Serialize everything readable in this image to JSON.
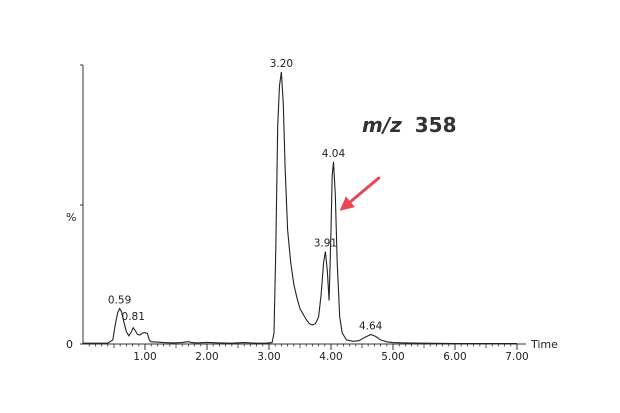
{
  "chart_data": {
    "type": "line",
    "title_italic": "m/z",
    "title_value": "358",
    "xlabel": "Time",
    "ylabel": "%",
    "xlim": [
      0,
      7.0
    ],
    "ylim": [
      0,
      100
    ],
    "y_axis_ticks": [
      "0"
    ],
    "x_ticks": [
      {
        "v": 1.0,
        "label": "1.00"
      },
      {
        "v": 2.0,
        "label": "2.00"
      },
      {
        "v": 3.0,
        "label": "3.00"
      },
      {
        "v": 4.0,
        "label": "4.00"
      },
      {
        "v": 5.0,
        "label": "5.00"
      },
      {
        "v": 6.0,
        "label": "6.00"
      },
      {
        "v": 7.0,
        "label": "7.00"
      }
    ],
    "peak_labels": [
      {
        "x": 0.59,
        "y": 13.0,
        "label": "0.59"
      },
      {
        "x": 0.81,
        "y": 7.0,
        "label": "0.81"
      },
      {
        "x": 3.2,
        "y": 100.0,
        "label": "3.20"
      },
      {
        "x": 3.91,
        "y": 34.0,
        "label": "3.91"
      },
      {
        "x": 4.04,
        "y": 67.0,
        "label": "4.04"
      },
      {
        "x": 4.64,
        "y": 3.5,
        "label": "4.64"
      }
    ],
    "arrow": {
      "from": [
        4.77,
        61
      ],
      "to": [
        4.14,
        49
      ],
      "color": "#e84855"
    },
    "line_color": "#222222",
    "series": [
      {
        "points": [
          [
            0.0,
            0.3
          ],
          [
            0.4,
            0.3
          ],
          [
            0.48,
            1.5
          ],
          [
            0.52,
            7
          ],
          [
            0.56,
            11.5
          ],
          [
            0.59,
            13.0
          ],
          [
            0.62,
            12
          ],
          [
            0.66,
            8
          ],
          [
            0.7,
            4.5
          ],
          [
            0.74,
            3.0
          ],
          [
            0.78,
            4.5
          ],
          [
            0.81,
            6.0
          ],
          [
            0.84,
            5.0
          ],
          [
            0.88,
            3.5
          ],
          [
            0.92,
            3.3
          ],
          [
            0.96,
            4.0
          ],
          [
            1.0,
            4.2
          ],
          [
            1.04,
            3.8
          ],
          [
            1.07,
            1.5
          ],
          [
            1.1,
            0.8
          ],
          [
            1.2,
            0.7
          ],
          [
            1.3,
            0.5
          ],
          [
            1.45,
            0.4
          ],
          [
            1.6,
            0.5
          ],
          [
            1.7,
            0.9
          ],
          [
            1.75,
            0.5
          ],
          [
            1.85,
            0.4
          ],
          [
            2.0,
            0.6
          ],
          [
            2.2,
            0.4
          ],
          [
            2.4,
            0.3
          ],
          [
            2.6,
            0.5
          ],
          [
            2.8,
            0.3
          ],
          [
            2.95,
            0.3
          ],
          [
            3.05,
            0.5
          ],
          [
            3.08,
            4
          ],
          [
            3.11,
            35
          ],
          [
            3.14,
            80
          ],
          [
            3.17,
            95
          ],
          [
            3.2,
            100.0
          ],
          [
            3.23,
            88
          ],
          [
            3.26,
            65
          ],
          [
            3.3,
            42
          ],
          [
            3.35,
            30
          ],
          [
            3.4,
            22
          ],
          [
            3.45,
            17
          ],
          [
            3.5,
            13
          ],
          [
            3.55,
            11
          ],
          [
            3.6,
            9
          ],
          [
            3.65,
            7.5
          ],
          [
            3.7,
            7
          ],
          [
            3.75,
            7.5
          ],
          [
            3.8,
            10
          ],
          [
            3.84,
            18
          ],
          [
            3.88,
            30
          ],
          [
            3.91,
            34.0
          ],
          [
            3.94,
            27
          ],
          [
            3.97,
            16
          ],
          [
            4.0,
            42
          ],
          [
            4.02,
            62
          ],
          [
            4.04,
            67.0
          ],
          [
            4.07,
            55
          ],
          [
            4.1,
            30
          ],
          [
            4.14,
            10
          ],
          [
            4.18,
            4
          ],
          [
            4.25,
            1.5
          ],
          [
            4.35,
            1.0
          ],
          [
            4.45,
            1.2
          ],
          [
            4.55,
            2.5
          ],
          [
            4.64,
            3.5
          ],
          [
            4.72,
            2.8
          ],
          [
            4.8,
            1.5
          ],
          [
            4.9,
            0.8
          ],
          [
            5.0,
            0.5
          ],
          [
            5.2,
            0.4
          ],
          [
            5.5,
            0.3
          ],
          [
            6.0,
            0.2
          ],
          [
            6.5,
            0.2
          ],
          [
            7.0,
            0.2
          ]
        ]
      }
    ]
  }
}
